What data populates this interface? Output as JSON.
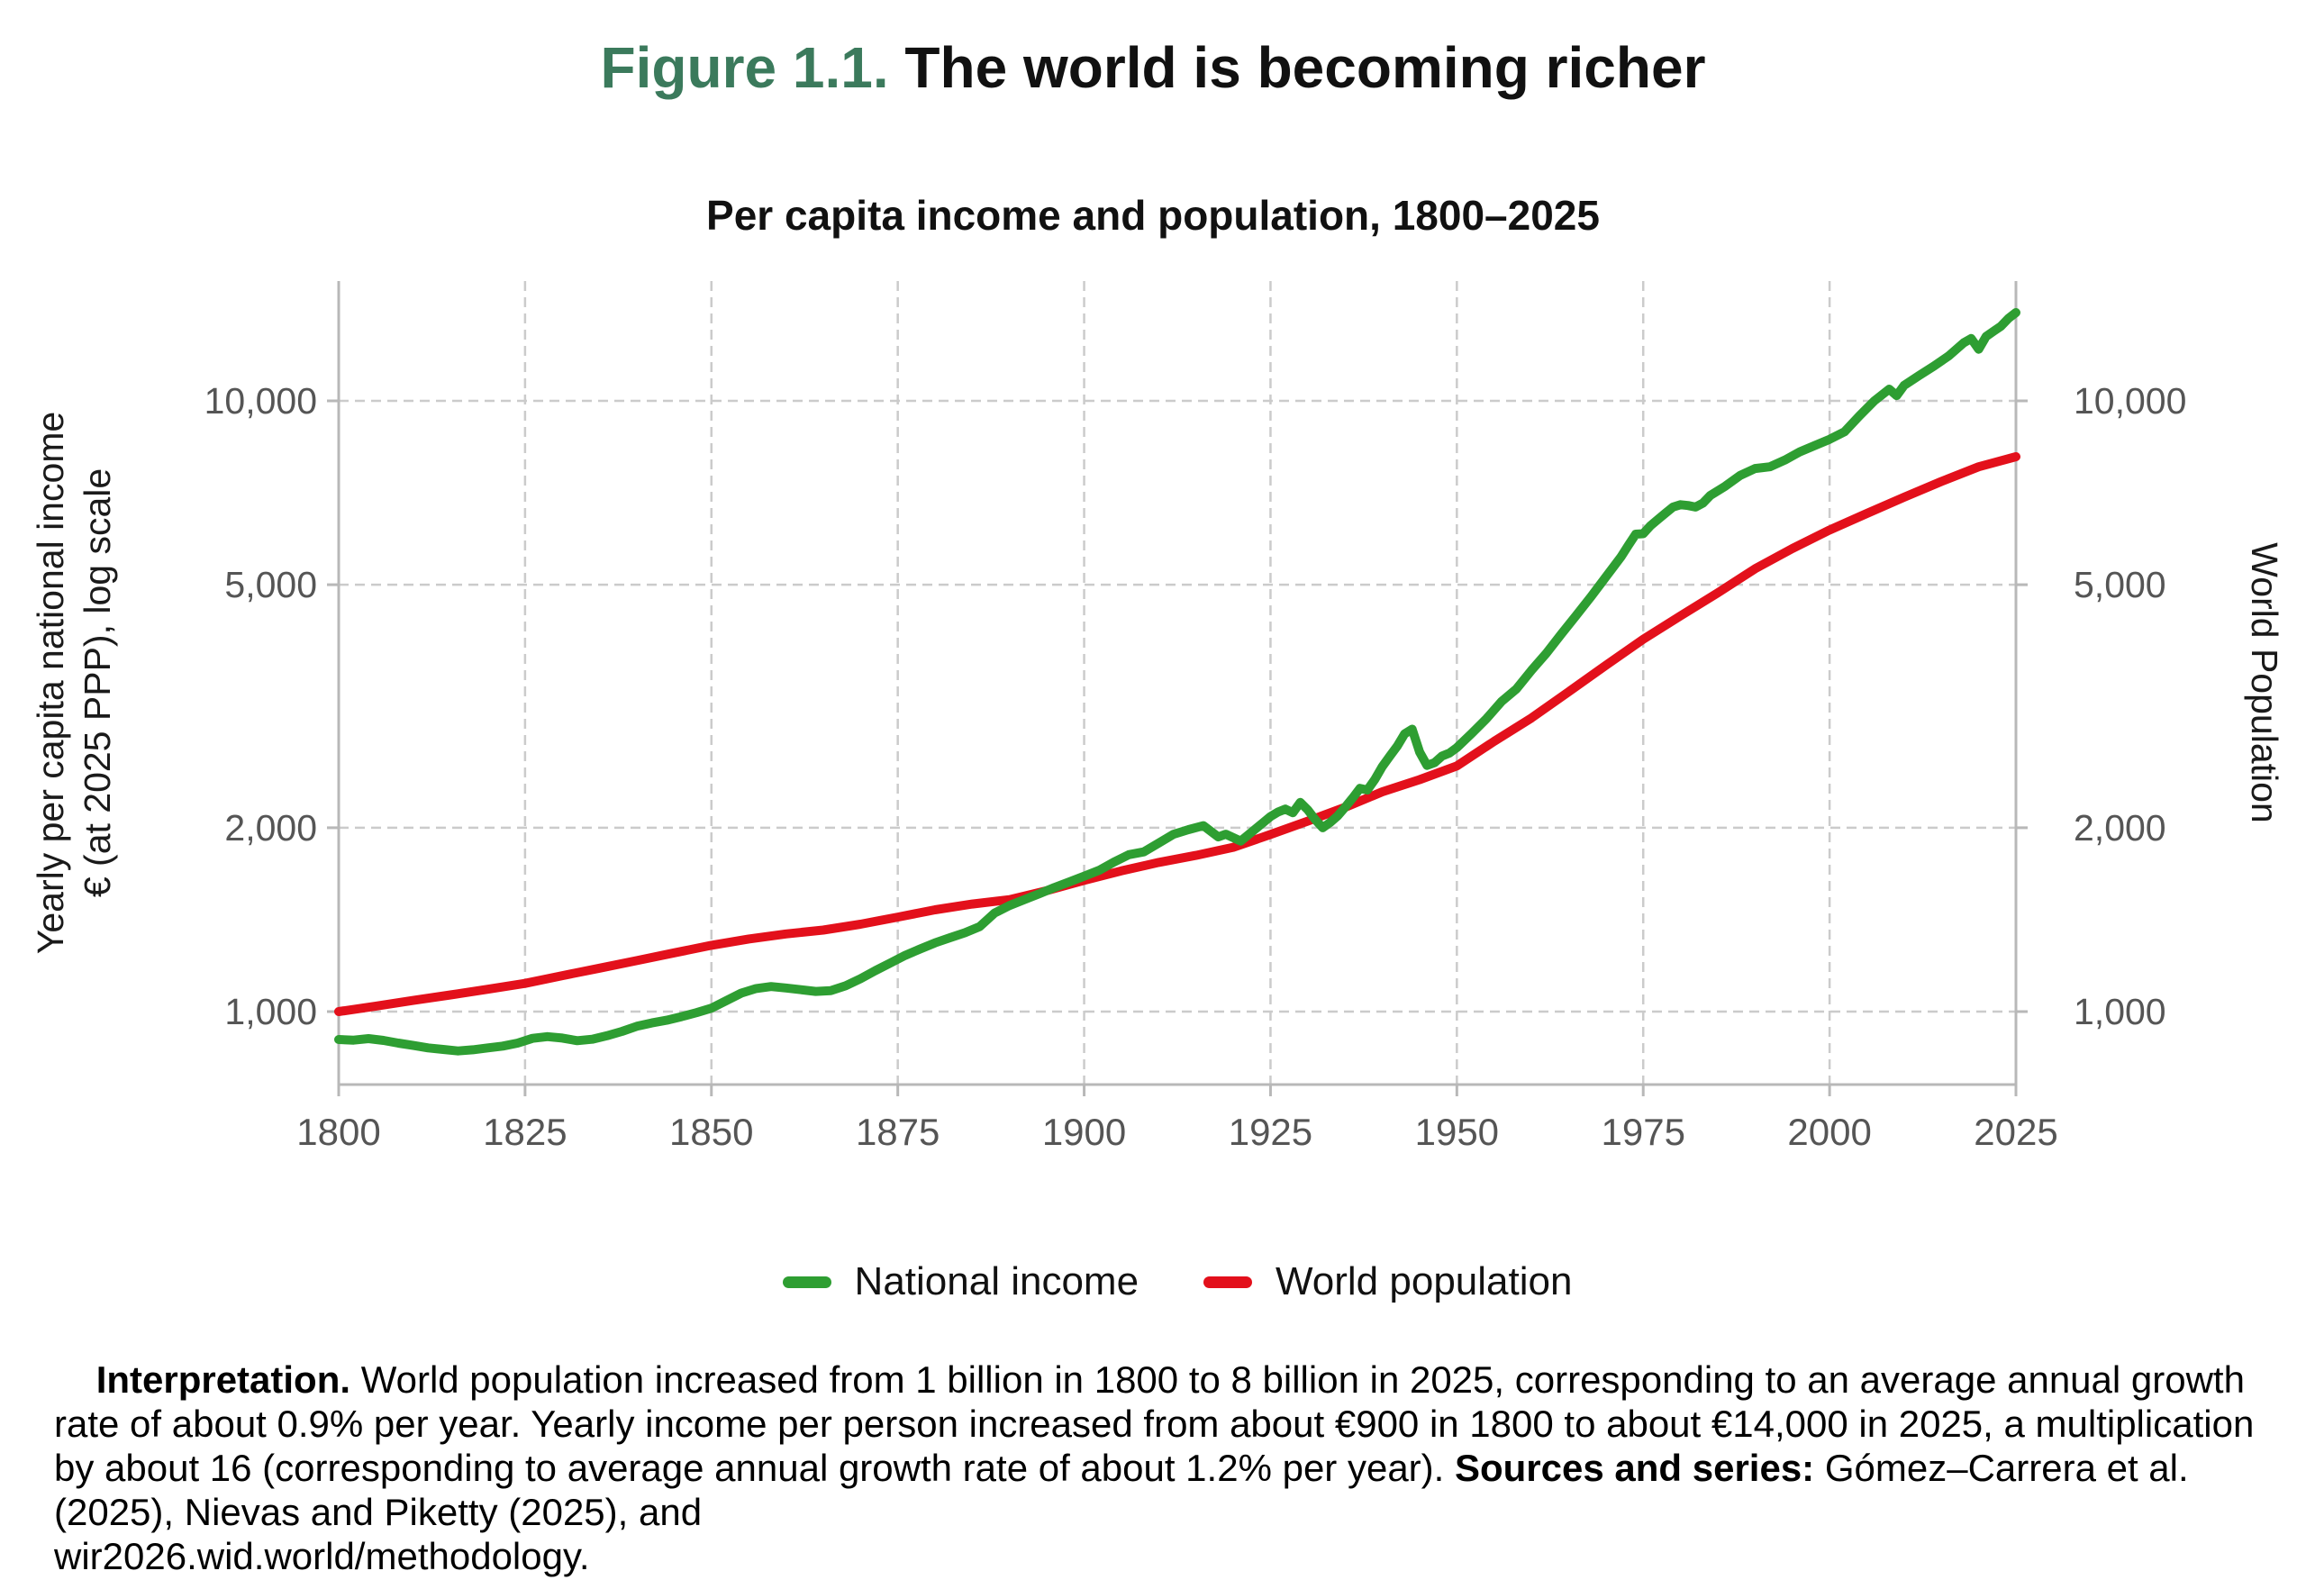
{
  "figure": {
    "title_prefix": "Figure 1.1.",
    "title_rest": " The world is becoming richer",
    "title_prefix_color": "#3B7A5C"
  },
  "chart_data": {
    "type": "line",
    "title": "Per capita income and population, 1800–2025",
    "x_axis": {
      "range": [
        1800,
        2025
      ],
      "ticks": [
        1800,
        1825,
        1850,
        1875,
        1900,
        1925,
        1950,
        1975,
        2000,
        2025
      ]
    },
    "y_axis_left": {
      "label_line1": "Yearly per capita national income",
      "label_line2": "€ (at 2025 PPP), log scale",
      "scale": "log",
      "ticks": [
        1000,
        2000,
        5000,
        10000
      ],
      "range": [
        760,
        15600
      ]
    },
    "y_axis_right": {
      "label": "World Population",
      "scale": "log",
      "ticks": [
        1000,
        2000,
        5000,
        10000
      ]
    },
    "grid": "dashed",
    "legend_position": "bottom-center",
    "colors": {
      "grid": "#CBCBCB",
      "axis": "#B8B8B8",
      "tick_label": "#555555"
    },
    "series": [
      {
        "name": "National income",
        "color": "#2E9E32",
        "points": [
          [
            1800,
            900
          ],
          [
            1802,
            898
          ],
          [
            1804,
            903
          ],
          [
            1806,
            897
          ],
          [
            1808,
            888
          ],
          [
            1810,
            880
          ],
          [
            1812,
            872
          ],
          [
            1814,
            867
          ],
          [
            1816,
            862
          ],
          [
            1818,
            866
          ],
          [
            1820,
            872
          ],
          [
            1822,
            878
          ],
          [
            1824,
            888
          ],
          [
            1826,
            904
          ],
          [
            1828,
            910
          ],
          [
            1830,
            905
          ],
          [
            1832,
            896
          ],
          [
            1834,
            901
          ],
          [
            1836,
            913
          ],
          [
            1838,
            928
          ],
          [
            1840,
            946
          ],
          [
            1842,
            958
          ],
          [
            1844,
            968
          ],
          [
            1846,
            981
          ],
          [
            1848,
            996
          ],
          [
            1850,
            1013
          ],
          [
            1852,
            1042
          ],
          [
            1854,
            1072
          ],
          [
            1856,
            1091
          ],
          [
            1858,
            1099
          ],
          [
            1860,
            1093
          ],
          [
            1862,
            1086
          ],
          [
            1864,
            1079
          ],
          [
            1866,
            1082
          ],
          [
            1868,
            1102
          ],
          [
            1870,
            1132
          ],
          [
            1872,
            1167
          ],
          [
            1874,
            1201
          ],
          [
            1876,
            1236
          ],
          [
            1878,
            1266
          ],
          [
            1880,
            1296
          ],
          [
            1882,
            1321
          ],
          [
            1884,
            1346
          ],
          [
            1886,
            1378
          ],
          [
            1888,
            1450
          ],
          [
            1890,
            1492
          ],
          [
            1892,
            1526
          ],
          [
            1894,
            1560
          ],
          [
            1896,
            1596
          ],
          [
            1898,
            1630
          ],
          [
            1900,
            1666
          ],
          [
            1902,
            1703
          ],
          [
            1904,
            1757
          ],
          [
            1906,
            1807
          ],
          [
            1908,
            1826
          ],
          [
            1910,
            1888
          ],
          [
            1912,
            1952
          ],
          [
            1914,
            1986
          ],
          [
            1916,
            2016
          ],
          [
            1918,
            1932
          ],
          [
            1919,
            1952
          ],
          [
            1921,
            1902
          ],
          [
            1923,
            1992
          ],
          [
            1925,
            2086
          ],
          [
            1926,
            2122
          ],
          [
            1927,
            2146
          ],
          [
            1928,
            2117
          ],
          [
            1929,
            2200
          ],
          [
            1930,
            2140
          ],
          [
            1931,
            2062
          ],
          [
            1932,
            2000
          ],
          [
            1933,
            2040
          ],
          [
            1934,
            2090
          ],
          [
            1935,
            2160
          ],
          [
            1936,
            2236
          ],
          [
            1937,
            2320
          ],
          [
            1938,
            2306
          ],
          [
            1939,
            2400
          ],
          [
            1940,
            2520
          ],
          [
            1941,
            2620
          ],
          [
            1942,
            2720
          ],
          [
            1943,
            2850
          ],
          [
            1944,
            2900
          ],
          [
            1945,
            2660
          ],
          [
            1946,
            2530
          ],
          [
            1947,
            2556
          ],
          [
            1948,
            2620
          ],
          [
            1949,
            2650
          ],
          [
            1950,
            2705
          ],
          [
            1952,
            2855
          ],
          [
            1954,
            3020
          ],
          [
            1956,
            3220
          ],
          [
            1958,
            3375
          ],
          [
            1960,
            3620
          ],
          [
            1962,
            3860
          ],
          [
            1964,
            4150
          ],
          [
            1966,
            4450
          ],
          [
            1968,
            4780
          ],
          [
            1970,
            5150
          ],
          [
            1972,
            5550
          ],
          [
            1973,
            5800
          ],
          [
            1974,
            6050
          ],
          [
            1975,
            6060
          ],
          [
            1976,
            6250
          ],
          [
            1977,
            6400
          ],
          [
            1978,
            6550
          ],
          [
            1979,
            6700
          ],
          [
            1980,
            6760
          ],
          [
            1981,
            6740
          ],
          [
            1982,
            6700
          ],
          [
            1983,
            6800
          ],
          [
            1984,
            7000
          ],
          [
            1986,
            7250
          ],
          [
            1988,
            7550
          ],
          [
            1990,
            7750
          ],
          [
            1992,
            7800
          ],
          [
            1994,
            8000
          ],
          [
            1996,
            8250
          ],
          [
            1998,
            8450
          ],
          [
            2000,
            8650
          ],
          [
            2002,
            8900
          ],
          [
            2004,
            9450
          ],
          [
            2006,
            10000
          ],
          [
            2008,
            10450
          ],
          [
            2009,
            10200
          ],
          [
            2010,
            10600
          ],
          [
            2012,
            11000
          ],
          [
            2014,
            11400
          ],
          [
            2016,
            11850
          ],
          [
            2018,
            12450
          ],
          [
            2019,
            12650
          ],
          [
            2020,
            12150
          ],
          [
            2021,
            12750
          ],
          [
            2022,
            13000
          ],
          [
            2023,
            13250
          ],
          [
            2024,
            13650
          ],
          [
            2025,
            13950
          ]
        ]
      },
      {
        "name": "World population",
        "color": "#E3101B",
        "points": [
          [
            1800,
            1000
          ],
          [
            1805,
            1021
          ],
          [
            1810,
            1043
          ],
          [
            1815,
            1065
          ],
          [
            1820,
            1088
          ],
          [
            1825,
            1112
          ],
          [
            1830,
            1145
          ],
          [
            1835,
            1178
          ],
          [
            1840,
            1212
          ],
          [
            1845,
            1248
          ],
          [
            1850,
            1284
          ],
          [
            1855,
            1315
          ],
          [
            1860,
            1340
          ],
          [
            1865,
            1360
          ],
          [
            1870,
            1390
          ],
          [
            1875,
            1428
          ],
          [
            1880,
            1468
          ],
          [
            1885,
            1500
          ],
          [
            1890,
            1525
          ],
          [
            1895,
            1578
          ],
          [
            1900,
            1640
          ],
          [
            1905,
            1700
          ],
          [
            1910,
            1755
          ],
          [
            1915,
            1802
          ],
          [
            1920,
            1858
          ],
          [
            1925,
            1950
          ],
          [
            1930,
            2050
          ],
          [
            1935,
            2160
          ],
          [
            1940,
            2290
          ],
          [
            1945,
            2398
          ],
          [
            1950,
            2525
          ],
          [
            1955,
            2770
          ],
          [
            1960,
            3025
          ],
          [
            1965,
            3340
          ],
          [
            1970,
            3690
          ],
          [
            1975,
            4070
          ],
          [
            1980,
            4445
          ],
          [
            1985,
            4850
          ],
          [
            1990,
            5310
          ],
          [
            1995,
            5730
          ],
          [
            2000,
            6145
          ],
          [
            2005,
            6540
          ],
          [
            2010,
            6955
          ],
          [
            2015,
            7380
          ],
          [
            2020,
            7800
          ],
          [
            2025,
            8100
          ]
        ]
      }
    ]
  },
  "legend": {
    "items": [
      {
        "label": "National income",
        "color": "#2E9E32"
      },
      {
        "label": "World population",
        "color": "#E3101B"
      }
    ]
  },
  "interpretation": {
    "segments": [
      {
        "text": "Interpretation.",
        "bold": true
      },
      {
        "text": " World population increased from 1 billion in 1800 to 8 billion in 2025, corresponding to an average annual growth rate of about 0.9% per year. Yearly income per person increased from about €900 in 1800 to about €14,000 in 2025, a multiplication by about 16 (corresponding to average annual growth rate of about 1.2% per year). ",
        "bold": false
      },
      {
        "text": "Sources and series:",
        "bold": true
      },
      {
        "text": " Gómez–Carrera et al. (2025), Nievas and Piketty (2025), and\nwir2026.wid.world/methodology.",
        "bold": false
      }
    ]
  }
}
